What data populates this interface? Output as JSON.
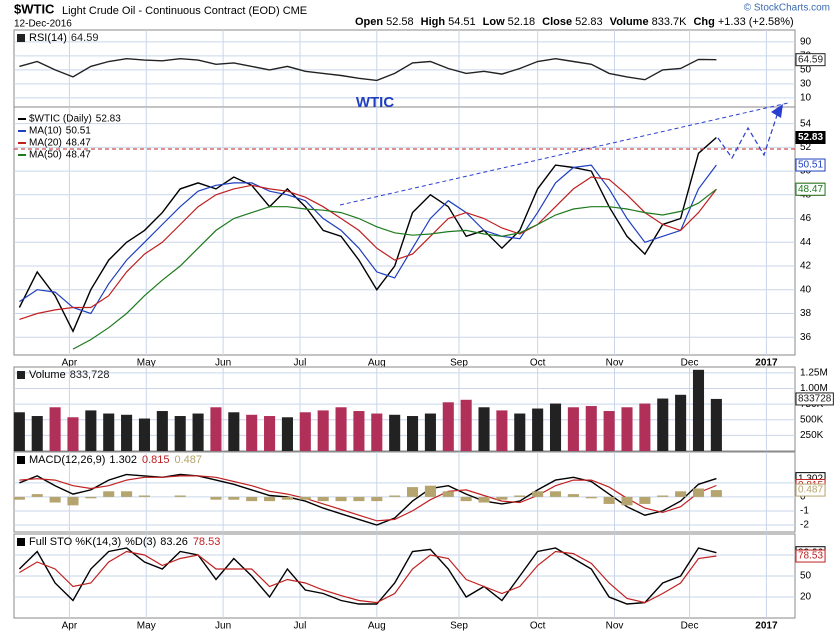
{
  "header": {
    "symbol": "$WTIC",
    "name": "Light Crude Oil - Continuous Contract (EOD) CME",
    "date": "12-Dec-2016",
    "watermark": "© StockCharts.com",
    "quote": [
      {
        "label": "Open",
        "value": "52.58"
      },
      {
        "label": "High",
        "value": "54.51"
      },
      {
        "label": "Low",
        "value": "52.18"
      },
      {
        "label": "Close",
        "value": "52.83"
      },
      {
        "label": "Volume",
        "value": "833.7K"
      },
      {
        "label": "Chg",
        "value": "+1.33 (+2.58%)"
      }
    ]
  },
  "chart_data": [
    {
      "type": "line",
      "ylim": [
        -3,
        107
      ],
      "yticks": [
        10,
        30,
        50,
        70,
        90
      ],
      "grid": true,
      "series": [
        {
          "name": "RSI(14)",
          "color": "#222222",
          "values": [
            55,
            62,
            50,
            40,
            55,
            62,
            66,
            64,
            63,
            66,
            64,
            58,
            60,
            55,
            50,
            55,
            48,
            45,
            42,
            38,
            35,
            45,
            60,
            62,
            52,
            45,
            48,
            44,
            52,
            62,
            66,
            62,
            58,
            45,
            40,
            36,
            50,
            52,
            65,
            64.59
          ]
        }
      ]
    },
    {
      "type": "line",
      "annotation": "WTIC",
      "ylim": [
        34.5,
        55.4
      ],
      "yticks": [
        36,
        38,
        40,
        42,
        44,
        46,
        48,
        50,
        52,
        54
      ],
      "grid": true,
      "xlim": [
        -0.3,
        43.4
      ],
      "xticks": [
        {
          "value": 2.8,
          "label": "Apr"
        },
        {
          "value": 7.1,
          "label": "May"
        },
        {
          "value": 11.4,
          "label": "Jun"
        },
        {
          "value": 15.7,
          "label": "Jul"
        },
        {
          "value": 20.0,
          "label": "Aug"
        },
        {
          "value": 24.6,
          "label": "Sep"
        },
        {
          "value": 29.0,
          "label": "Oct"
        },
        {
          "value": 33.3,
          "label": "Nov"
        },
        {
          "value": 37.5,
          "label": "Dec"
        },
        {
          "value": 41.8,
          "label": "2017"
        }
      ],
      "series": [
        {
          "name": "$WTIC (Daily)",
          "color": "#000000",
          "values": [
            38.5,
            41.5,
            39.5,
            36.5,
            40.0,
            42.5,
            44.0,
            45.0,
            46.5,
            48.5,
            49.0,
            48.5,
            49.5,
            48.8,
            47.0,
            48.5,
            47.0,
            45.0,
            44.5,
            42.5,
            40.0,
            42.0,
            46.5,
            48.0,
            47.0,
            44.5,
            45.0,
            43.5,
            45.0,
            48.5,
            50.5,
            50.3,
            50.0,
            47.0,
            44.5,
            43.0,
            45.5,
            46.0,
            51.5,
            52.83
          ]
        },
        {
          "name": "MA(10)",
          "color": "#1f3fbf",
          "values": [
            39,
            40,
            39.8,
            38.5,
            38,
            40.5,
            42.5,
            44,
            45.5,
            47,
            48.3,
            48.8,
            49,
            49,
            48.3,
            48,
            47.5,
            46,
            45,
            43.5,
            41.5,
            41,
            43.5,
            46,
            47.5,
            46.5,
            45,
            44.5,
            44.3,
            46.5,
            49,
            50.3,
            50.5,
            48.5,
            46,
            44,
            44.5,
            45,
            48.5,
            50.51
          ]
        },
        {
          "name": "MA(20)",
          "color": "#c02020",
          "values": [
            37.5,
            38,
            38.3,
            38.5,
            38.5,
            39.5,
            41.5,
            43,
            44,
            45.5,
            47,
            48,
            48.5,
            48.8,
            48.5,
            48.3,
            47.8,
            47,
            46,
            45,
            43.5,
            42.5,
            43,
            44.5,
            46,
            46.5,
            46,
            45.2,
            44.7,
            45.5,
            47,
            48.5,
            49.5,
            49.3,
            48,
            46.5,
            45.5,
            45,
            46.5,
            48.47
          ]
        },
        {
          "name": "MA(50)",
          "color": "#1e7a1e",
          "values": [
            null,
            null,
            null,
            35,
            35.8,
            36.8,
            38,
            39.5,
            40.8,
            42,
            43.5,
            45,
            46,
            46.5,
            47,
            47,
            46.8,
            46.7,
            46.5,
            46,
            45.3,
            44.8,
            44.6,
            44.7,
            44.9,
            45,
            44.7,
            44.5,
            44.8,
            45.5,
            46.3,
            46.8,
            47,
            47,
            46.8,
            46.5,
            46.3,
            46.6,
            47.3,
            48.47
          ]
        }
      ]
    },
    {
      "type": "bar",
      "ylim": [
        0,
        1345000
      ],
      "yticks": [
        {
          "value": 250000,
          "label": "250K"
        },
        {
          "value": 500000,
          "label": "500K"
        },
        {
          "value": 750000,
          "label": "750K"
        },
        {
          "value": 1000000,
          "label": "1.00M"
        },
        {
          "value": 1250000,
          "label": "1.25M"
        }
      ],
      "grid": true,
      "series": [
        {
          "name": "Volume",
          "kind": "bar",
          "color": "#222222",
          "values": [
            620000,
            560000,
            700000,
            540000,
            650000,
            600000,
            580000,
            520000,
            640000,
            560000,
            600000,
            700000,
            620000,
            580000,
            560000,
            540000,
            620000,
            650000,
            700000,
            640000,
            600000,
            580000,
            560000,
            600000,
            780000,
            820000,
            700000,
            650000,
            600000,
            680000,
            760000,
            700000,
            720000,
            640000,
            700000,
            760000,
            840000,
            900000,
            1300000,
            833728
          ],
          "value_labels": [
            null,
            null,
            null,
            null,
            null,
            null,
            null,
            null,
            null,
            null,
            null,
            null,
            null,
            null,
            null,
            null,
            null,
            null,
            null,
            null,
            null,
            null,
            null,
            null,
            null,
            null,
            null,
            null,
            null,
            null,
            null,
            null,
            null,
            null,
            null,
            null,
            null,
            null,
            null,
            "833,728"
          ],
          "colors": [
            "#222222",
            "#222222",
            "#b0305a",
            "#b0305a",
            "#222222",
            "#222222",
            "#222222",
            "#222222",
            "#222222",
            "#222222",
            "#222222",
            "#b0305a",
            "#222222",
            "#b0305a",
            "#b0305a",
            "#222222",
            "#b0305a",
            "#b0305a",
            "#b0305a",
            "#b0305a",
            "#b0305a",
            "#222222",
            "#222222",
            "#222222",
            "#b0305a",
            "#b0305a",
            "#222222",
            "#b0305a",
            "#222222",
            "#222222",
            "#222222",
            "#b0305a",
            "#b0305a",
            "#b0305a",
            "#b0305a",
            "#b0305a",
            "#222222",
            "#222222",
            "#222222",
            "#222222"
          ]
        }
      ]
    },
    {
      "type": "line",
      "ylim": [
        -2.5,
        3.2
      ],
      "yticks": [
        -2,
        -1,
        0,
        1
      ],
      "grid": true,
      "series": [
        {
          "name": "MACD(12,26,9)",
          "color": "#000000",
          "values": [
            1.0,
            1.5,
            0.8,
            0.2,
            0.5,
            1.2,
            1.6,
            1.5,
            1.4,
            1.6,
            1.5,
            1.2,
            0.9,
            0.5,
            0.1,
            0,
            -0.3,
            -0.8,
            -1.2,
            -1.6,
            -2.0,
            -1.5,
            -0.3,
            0.6,
            0.8,
            0.2,
            -0.3,
            -0.5,
            -0.3,
            0.5,
            1.2,
            1.4,
            1.1,
            0.2,
            -0.7,
            -1.3,
            -1.0,
            -0.3,
            0.9,
            1.302
          ]
        },
        {
          "color": "#c02020",
          "values": [
            1.2,
            1.3,
            1.2,
            0.8,
            0.6,
            0.8,
            1.2,
            1.4,
            1.4,
            1.5,
            1.5,
            1.4,
            1.1,
            0.8,
            0.4,
            0.2,
            -0.1,
            -0.5,
            -0.9,
            -1.3,
            -1.7,
            -1.6,
            -1.0,
            -0.2,
            0.4,
            0.5,
            0.1,
            -0.3,
            -0.4,
            0.1,
            0.8,
            1.2,
            1.2,
            0.7,
            -0.1,
            -0.8,
            -1.1,
            -0.7,
            0.3,
            0.815
          ]
        },
        {
          "kind": "bar",
          "color": "#b5a46e",
          "values": [
            -0.2,
            0.2,
            -0.4,
            -0.6,
            -0.1,
            0.4,
            0.4,
            0.1,
            0,
            0.1,
            0,
            -0.2,
            -0.2,
            -0.3,
            -0.3,
            -0.2,
            -0.2,
            -0.3,
            -0.3,
            -0.3,
            -0.3,
            0.1,
            0.7,
            0.8,
            0.4,
            -0.3,
            -0.4,
            -0.2,
            0.1,
            0.4,
            0.4,
            0.2,
            -0.1,
            -0.5,
            -0.6,
            -0.5,
            0.1,
            0.4,
            0.6,
            0.487
          ]
        }
      ]
    },
    {
      "type": "line",
      "ylim": [
        -10,
        110
      ],
      "yticks": [
        20,
        50,
        80
      ],
      "grid": true,
      "xlim": [
        -0.3,
        43.4
      ],
      "xticks": [
        {
          "value": 2.8,
          "label": "Apr"
        },
        {
          "value": 7.1,
          "label": "May"
        },
        {
          "value": 11.4,
          "label": "Jun"
        },
        {
          "value": 15.7,
          "label": "Jul"
        },
        {
          "value": 20.0,
          "label": "Aug"
        },
        {
          "value": 24.6,
          "label": "Sep"
        },
        {
          "value": 29.0,
          "label": "Oct"
        },
        {
          "value": 33.3,
          "label": "Nov"
        },
        {
          "value": 37.5,
          "label": "Dec"
        },
        {
          "value": 41.8,
          "label": "2017"
        }
      ],
      "series": [
        {
          "name": "Full STO %K(14,3)",
          "color": "#000000",
          "values": [
            60,
            85,
            40,
            15,
            60,
            85,
            90,
            70,
            60,
            85,
            80,
            45,
            75,
            50,
            20,
            60,
            30,
            25,
            15,
            10,
            10,
            40,
            85,
            88,
            60,
            20,
            35,
            15,
            50,
            85,
            90,
            75,
            60,
            20,
            10,
            12,
            40,
            50,
            90,
            83.26
          ]
        },
        {
          "name": "%D(3)",
          "color": "#c02020",
          "values": [
            55,
            70,
            60,
            35,
            40,
            70,
            85,
            80,
            65,
            75,
            80,
            60,
            60,
            60,
            35,
            45,
            40,
            30,
            22,
            15,
            12,
            25,
            60,
            80,
            75,
            45,
            35,
            25,
            35,
            65,
            85,
            82,
            68,
            40,
            18,
            12,
            25,
            40,
            75,
            78.53
          ]
        }
      ]
    }
  ]
}
